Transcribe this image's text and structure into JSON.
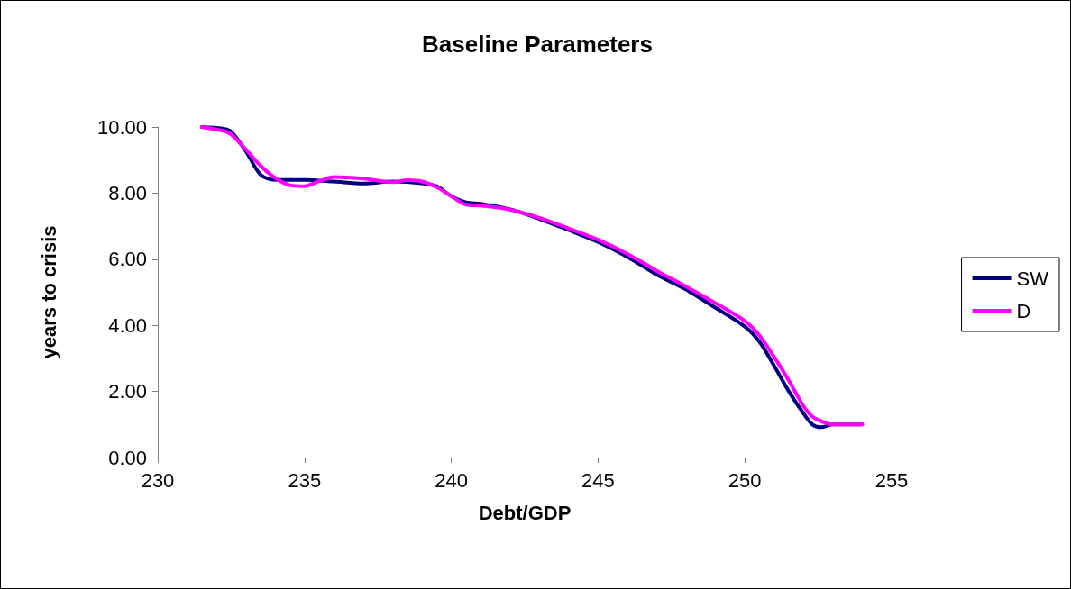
{
  "chart_data": {
    "type": "line",
    "title": "Baseline Parameters",
    "xlabel": "Debt/GDP",
    "ylabel": "years to crisis",
    "xlim": [
      230,
      255
    ],
    "xticks": [
      230,
      235,
      240,
      245,
      250,
      255
    ],
    "ylim": [
      0,
      10
    ],
    "yticks": [
      {
        "value": 0,
        "label": "0.00"
      },
      {
        "value": 2,
        "label": "2.00"
      },
      {
        "value": 4,
        "label": "4.00"
      },
      {
        "value": 6,
        "label": "6.00"
      },
      {
        "value": 8,
        "label": "8.00"
      },
      {
        "value": 10,
        "label": "10.00"
      }
    ],
    "grid": false,
    "legend": "right",
    "marker": "none",
    "line_style": "solid",
    "series": [
      {
        "name": "SW",
        "color": "#000080",
        "x": [
          231.5,
          232.2,
          232.5,
          233,
          233.5,
          234,
          235,
          236,
          237,
          238,
          239,
          239.5,
          240,
          240.5,
          241,
          242,
          243,
          244,
          245,
          246,
          247,
          248,
          249,
          250,
          250.5,
          251,
          251.5,
          252,
          252.3,
          252.6,
          253,
          254
        ],
        "values": [
          10,
          9.95,
          9.86,
          9.27,
          8.56,
          8.4,
          8.4,
          8.35,
          8.29,
          8.35,
          8.3,
          8.21,
          7.91,
          7.72,
          7.68,
          7.51,
          7.22,
          6.88,
          6.52,
          6.07,
          5.53,
          5.08,
          4.53,
          3.96,
          3.5,
          2.77,
          2,
          1.33,
          1.0,
          0.92,
          1.0,
          1.0
        ]
      },
      {
        "name": "D",
        "color": "#ff00ff",
        "x": [
          231.5,
          232.2,
          232.5,
          233,
          233.5,
          234,
          234.5,
          235,
          235.5,
          236,
          237,
          238,
          238.5,
          239,
          239.5,
          240,
          240.5,
          241,
          242,
          243,
          244,
          245,
          246,
          247,
          248,
          249,
          250,
          250.5,
          251,
          251.5,
          252,
          252.3,
          252.6,
          253,
          254
        ],
        "values": [
          10,
          9.89,
          9.78,
          9.32,
          8.83,
          8.46,
          8.24,
          8.21,
          8.36,
          8.49,
          8.44,
          8.33,
          8.39,
          8.35,
          8.18,
          7.91,
          7.65,
          7.62,
          7.5,
          7.25,
          6.93,
          6.59,
          6.16,
          5.65,
          5.17,
          4.67,
          4.13,
          3.69,
          3.04,
          2.33,
          1.55,
          1.24,
          1.1,
          1.0,
          1.0
        ]
      }
    ]
  }
}
